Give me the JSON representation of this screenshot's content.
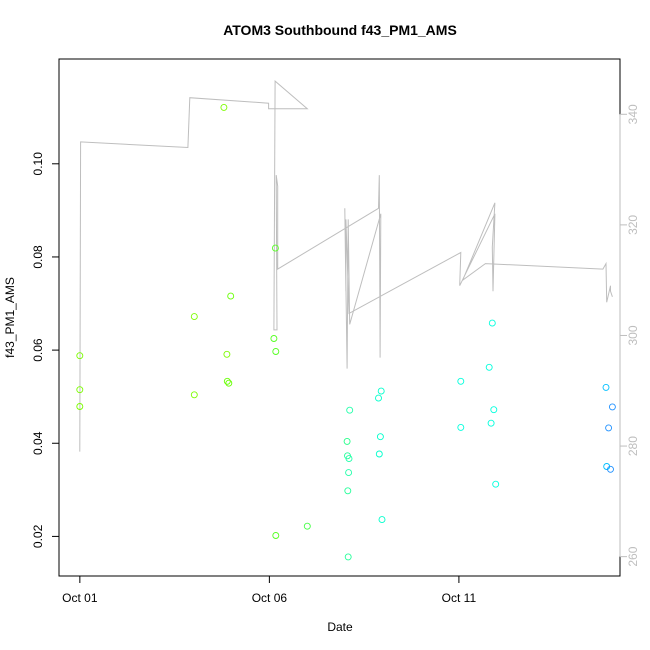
{
  "chart_data": {
    "type": "scatter",
    "title": "ATOM3 Southbound f43_PM1_AMS",
    "xlabel": "Date",
    "ylabel": "f43_PM1_AMS",
    "x_tick_labels": [
      {
        "day": 1,
        "label": "Oct 01"
      },
      {
        "day": 6,
        "label": "Oct 06"
      },
      {
        "day": 11,
        "label": "Oct 11"
      }
    ],
    "xlim_days": [
      0.45,
      15.25
    ],
    "ylim": [
      0.0115,
      0.1225
    ],
    "y_ticks": [
      0.02,
      0.04,
      0.06,
      0.08,
      0.1
    ],
    "y_tick_labels": [
      "0.02",
      "0.04",
      "0.06",
      "0.08",
      "0.10"
    ],
    "y2_lim": [
      256.5,
      350.0
    ],
    "y2_ticks": [
      260,
      280,
      300,
      320,
      340
    ],
    "y2_tick_labels": [
      "260",
      "280",
      "300",
      "320",
      "340"
    ],
    "axis_colors": {
      "left": "#000000",
      "right": "#bebebe"
    },
    "points_color_scale": [
      "#7cfc00",
      "#00ffcc",
      "#00bfff",
      "#1e90ff"
    ],
    "line_color": "#bebebe",
    "points": [
      {
        "x": 1.0,
        "y": 0.0588,
        "color": "#7cfc00"
      },
      {
        "x": 1.0,
        "y": 0.0515,
        "color": "#7cfc00"
      },
      {
        "x": 1.0,
        "y": 0.0479,
        "color": "#7cfc00"
      },
      {
        "x": 4.02,
        "y": 0.0672,
        "color": "#7cfc00"
      },
      {
        "x": 4.02,
        "y": 0.0504,
        "color": "#7cfc00"
      },
      {
        "x": 4.8,
        "y": 0.1121,
        "color": "#7cfc00"
      },
      {
        "x": 4.88,
        "y": 0.0591,
        "color": "#7cfc00"
      },
      {
        "x": 4.89,
        "y": 0.0533,
        "color": "#66ff00"
      },
      {
        "x": 4.93,
        "y": 0.0529,
        "color": "#66ff00"
      },
      {
        "x": 4.98,
        "y": 0.0716,
        "color": "#66ff00"
      },
      {
        "x": 6.12,
        "y": 0.0625,
        "color": "#55ff22"
      },
      {
        "x": 6.16,
        "y": 0.0819,
        "color": "#55ff22"
      },
      {
        "x": 6.17,
        "y": 0.0597,
        "color": "#55ff22"
      },
      {
        "x": 6.17,
        "y": 0.0202,
        "color": "#55ff22"
      },
      {
        "x": 7.0,
        "y": 0.0222,
        "color": "#44ff44"
      },
      {
        "x": 8.05,
        "y": 0.0404,
        "color": "#22ff88"
      },
      {
        "x": 8.06,
        "y": 0.0373,
        "color": "#22ff99"
      },
      {
        "x": 8.07,
        "y": 0.0298,
        "color": "#22ff99"
      },
      {
        "x": 8.08,
        "y": 0.0156,
        "color": "#22ff99"
      },
      {
        "x": 8.09,
        "y": 0.0337,
        "color": "#22ffaa"
      },
      {
        "x": 8.1,
        "y": 0.0367,
        "color": "#22ffaa"
      },
      {
        "x": 8.12,
        "y": 0.0471,
        "color": "#22ffaa"
      },
      {
        "x": 8.88,
        "y": 0.0497,
        "color": "#00ffcc"
      },
      {
        "x": 8.9,
        "y": 0.0377,
        "color": "#00ffcc"
      },
      {
        "x": 8.93,
        "y": 0.0414,
        "color": "#00ffcc"
      },
      {
        "x": 8.95,
        "y": 0.0512,
        "color": "#00ffcc"
      },
      {
        "x": 8.97,
        "y": 0.0236,
        "color": "#00ffcc"
      },
      {
        "x": 11.05,
        "y": 0.0533,
        "color": "#00ffdd"
      },
      {
        "x": 11.05,
        "y": 0.0434,
        "color": "#00ffdd"
      },
      {
        "x": 11.8,
        "y": 0.0563,
        "color": "#00ffdd"
      },
      {
        "x": 11.85,
        "y": 0.0443,
        "color": "#00ffdd"
      },
      {
        "x": 11.88,
        "y": 0.0658,
        "color": "#00ffdd"
      },
      {
        "x": 11.92,
        "y": 0.0472,
        "color": "#00ffdd"
      },
      {
        "x": 11.97,
        "y": 0.0312,
        "color": "#00ffdd"
      },
      {
        "x": 14.88,
        "y": 0.052,
        "color": "#00bfff"
      },
      {
        "x": 14.9,
        "y": 0.035,
        "color": "#00bfff"
      },
      {
        "x": 14.95,
        "y": 0.0433,
        "color": "#1e90ff"
      },
      {
        "x": 15.0,
        "y": 0.0344,
        "color": "#1e90ff"
      },
      {
        "x": 15.05,
        "y": 0.0478,
        "color": "#1e90ff"
      }
    ],
    "line_y2": [
      {
        "x": 1.0,
        "y": 279
      },
      {
        "x": 1.02,
        "y": 335
      },
      {
        "x": 3.85,
        "y": 334
      },
      {
        "x": 3.9,
        "y": 343
      },
      {
        "x": 5.98,
        "y": 342
      },
      {
        "x": 5.98,
        "y": 341
      },
      {
        "x": 7.0,
        "y": 341
      },
      {
        "x": 6.15,
        "y": 346
      },
      {
        "x": 6.12,
        "y": 301
      },
      {
        "x": 6.2,
        "y": 301
      },
      {
        "x": 6.18,
        "y": 329
      },
      {
        "x": 6.22,
        "y": 327
      },
      {
        "x": 6.22,
        "y": 312
      },
      {
        "x": 8.88,
        "y": 323
      },
      {
        "x": 8.9,
        "y": 329
      },
      {
        "x": 8.92,
        "y": 296
      },
      {
        "x": 8.94,
        "y": 322
      },
      {
        "x": 8.12,
        "y": 302
      },
      {
        "x": 8.08,
        "y": 321
      },
      {
        "x": 8.05,
        "y": 294
      },
      {
        "x": 7.99,
        "y": 323
      },
      {
        "x": 8.02,
        "y": 308
      },
      {
        "x": 8.02,
        "y": 321
      },
      {
        "x": 8.1,
        "y": 304
      },
      {
        "x": 11.05,
        "y": 315
      },
      {
        "x": 11.02,
        "y": 309
      },
      {
        "x": 11.95,
        "y": 322
      },
      {
        "x": 11.9,
        "y": 308
      },
      {
        "x": 11.88,
        "y": 316
      },
      {
        "x": 11.95,
        "y": 324
      },
      {
        "x": 11.1,
        "y": 310
      },
      {
        "x": 11.7,
        "y": 313
      },
      {
        "x": 14.8,
        "y": 312
      },
      {
        "x": 14.88,
        "y": 313
      },
      {
        "x": 14.9,
        "y": 306
      },
      {
        "x": 15.0,
        "y": 309
      },
      {
        "x": 15.0,
        "y": 308
      },
      {
        "x": 15.05,
        "y": 307
      }
    ]
  }
}
